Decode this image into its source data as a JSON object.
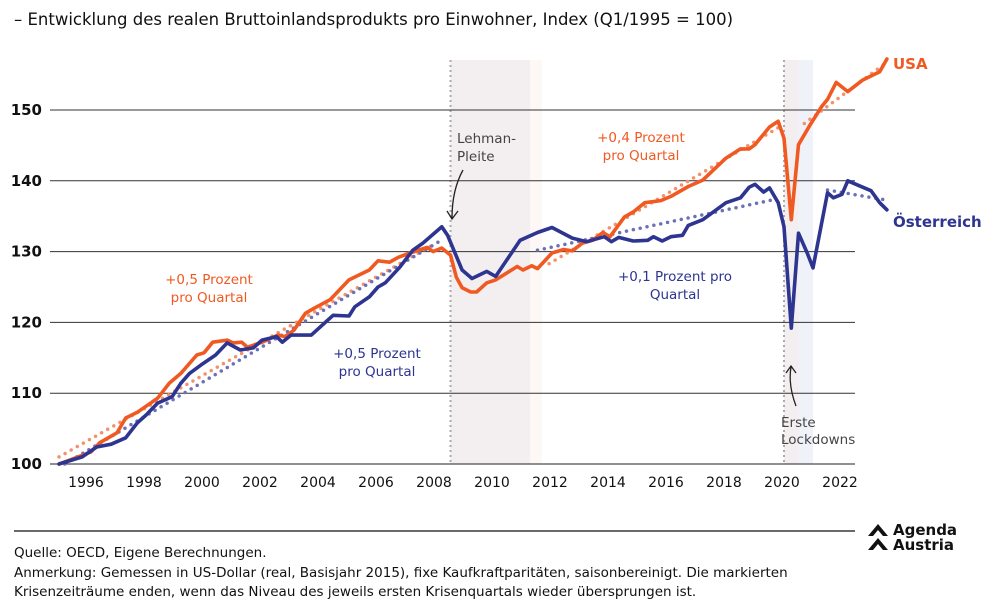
{
  "chart_data": {
    "type": "line",
    "title": "– Entwicklung des realen Bruttoinlandsprodukts pro Einwohner, Index (Q1/1995 = 100)",
    "xlabel": "",
    "ylabel": "",
    "xlim": [
      1995,
      2023.75
    ],
    "ylim": [
      100,
      157
    ],
    "yticks": [
      100,
      110,
      120,
      130,
      140,
      150
    ],
    "xticks": [
      1996,
      1998,
      2000,
      2002,
      2004,
      2006,
      2008,
      2010,
      2012,
      2014,
      2016,
      2018,
      2020,
      2022
    ],
    "grid": "horizontal",
    "colors": {
      "usa": "#f05a22",
      "austria": "#2e3590",
      "usa_trend": "#f4916a",
      "austria_trend": "#6c70b8",
      "crisis_shade": "#f3eff1",
      "crisis_recovery_lehman": "#fdf8f5",
      "crisis_recovery_covid": "#f0f2f9"
    },
    "series": [
      {
        "name": "USA",
        "key": "usa",
        "points": [
          [
            1995.0,
            100
          ],
          [
            1996.1,
            101.7
          ],
          [
            1996.4,
            103.0
          ],
          [
            1997.0,
            104.4
          ],
          [
            1997.3,
            106.5
          ],
          [
            1997.7,
            107.3
          ],
          [
            1998.4,
            109.3
          ],
          [
            1998.8,
            111.4
          ],
          [
            1999.2,
            112.8
          ],
          [
            1999.75,
            115.4
          ],
          [
            2000.0,
            115.7
          ],
          [
            2000.3,
            117.2
          ],
          [
            2000.8,
            117.5
          ],
          [
            2001.0,
            117.1
          ],
          [
            2001.3,
            117.2
          ],
          [
            2001.5,
            116.5
          ],
          [
            2002.0,
            117.2
          ],
          [
            2002.55,
            118.2
          ],
          [
            2002.8,
            118.0
          ],
          [
            2003.1,
            118.9
          ],
          [
            2003.5,
            121.3
          ],
          [
            2003.8,
            122.0
          ],
          [
            2004.35,
            123.2
          ],
          [
            2005.0,
            126.0
          ],
          [
            2005.45,
            126.9
          ],
          [
            2005.7,
            127.4
          ],
          [
            2006.0,
            128.7
          ],
          [
            2006.4,
            128.5
          ],
          [
            2006.7,
            129.2
          ],
          [
            2007.1,
            129.8
          ],
          [
            2007.7,
            130.6
          ],
          [
            2007.9,
            130.0
          ],
          [
            2008.2,
            130.5
          ],
          [
            2008.5,
            129.5
          ],
          [
            2008.7,
            126.4
          ],
          [
            2008.9,
            124.9
          ],
          [
            2009.2,
            124.3
          ],
          [
            2009.4,
            124.3
          ],
          [
            2009.75,
            125.6
          ],
          [
            2010.06,
            126.0
          ],
          [
            2010.8,
            127.9
          ],
          [
            2011.0,
            127.4
          ],
          [
            2011.3,
            128.0
          ],
          [
            2011.5,
            127.6
          ],
          [
            2012.0,
            129.8
          ],
          [
            2012.4,
            130.3
          ],
          [
            2012.7,
            130.1
          ],
          [
            2013.05,
            131.2
          ],
          [
            2013.4,
            131.6
          ],
          [
            2013.75,
            132.7
          ],
          [
            2014.0,
            132.1
          ],
          [
            2014.5,
            134.9
          ],
          [
            2014.8,
            135.6
          ],
          [
            2015.2,
            136.9
          ],
          [
            2015.75,
            137.2
          ],
          [
            2016.1,
            137.8
          ],
          [
            2016.7,
            139.2
          ],
          [
            2017.2,
            140.1
          ],
          [
            2018.0,
            143.2
          ],
          [
            2018.5,
            144.5
          ],
          [
            2018.8,
            144.5
          ],
          [
            2019.0,
            145.1
          ],
          [
            2019.5,
            147.6
          ],
          [
            2019.8,
            148.4
          ],
          [
            2020.0,
            146.0
          ],
          [
            2020.25,
            134.5
          ],
          [
            2020.5,
            145.1
          ],
          [
            2020.9,
            147.9
          ],
          [
            2021.3,
            150.5
          ],
          [
            2021.5,
            151.5
          ],
          [
            2021.8,
            153.9
          ],
          [
            2022.2,
            152.6
          ],
          [
            2022.7,
            154.2
          ],
          [
            2023.3,
            155.4
          ],
          [
            2023.55,
            157.2
          ]
        ]
      },
      {
        "name": "Österreich",
        "key": "austria",
        "points": [
          [
            1995.0,
            100
          ],
          [
            1995.8,
            101.0
          ],
          [
            1996.3,
            102.4
          ],
          [
            1996.8,
            102.8
          ],
          [
            1997.3,
            103.7
          ],
          [
            1997.7,
            105.8
          ],
          [
            1998.0,
            106.9
          ],
          [
            1998.4,
            108.6
          ],
          [
            1998.9,
            109.5
          ],
          [
            1999.2,
            111.4
          ],
          [
            1999.5,
            112.8
          ],
          [
            1999.9,
            114.0
          ],
          [
            2000.4,
            115.4
          ],
          [
            2000.8,
            117.1
          ],
          [
            2001.25,
            116.1
          ],
          [
            2001.7,
            116.4
          ],
          [
            2002.0,
            117.5
          ],
          [
            2002.5,
            118.0
          ],
          [
            2002.7,
            117.2
          ],
          [
            2003.0,
            118.2
          ],
          [
            2003.7,
            118.2
          ],
          [
            2004.45,
            121.0
          ],
          [
            2005.0,
            120.9
          ],
          [
            2005.2,
            122.2
          ],
          [
            2005.7,
            123.6
          ],
          [
            2006.0,
            125.0
          ],
          [
            2006.25,
            125.6
          ],
          [
            2006.75,
            127.8
          ],
          [
            2007.2,
            130.2
          ],
          [
            2007.55,
            131.2
          ],
          [
            2008.2,
            133.5
          ],
          [
            2008.4,
            132.3
          ],
          [
            2008.9,
            127.4
          ],
          [
            2009.24,
            126.2
          ],
          [
            2009.75,
            127.2
          ],
          [
            2010.06,
            126.5
          ],
          [
            2010.9,
            131.6
          ],
          [
            2011.5,
            132.7
          ],
          [
            2012.0,
            133.4
          ],
          [
            2012.7,
            131.9
          ],
          [
            2013.2,
            131.4
          ],
          [
            2013.8,
            132.1
          ],
          [
            2014.05,
            131.4
          ],
          [
            2014.3,
            132.0
          ],
          [
            2014.8,
            131.5
          ],
          [
            2015.3,
            131.6
          ],
          [
            2015.5,
            132.1
          ],
          [
            2015.8,
            131.5
          ],
          [
            2016.1,
            132.1
          ],
          [
            2016.5,
            132.3
          ],
          [
            2016.7,
            133.7
          ],
          [
            2017.2,
            134.5
          ],
          [
            2018.0,
            136.9
          ],
          [
            2018.5,
            137.6
          ],
          [
            2018.8,
            139.1
          ],
          [
            2019.0,
            139.5
          ],
          [
            2019.3,
            138.4
          ],
          [
            2019.5,
            139.0
          ],
          [
            2019.8,
            136.9
          ],
          [
            2020.0,
            133.5
          ],
          [
            2020.25,
            119.2
          ],
          [
            2020.5,
            132.6
          ],
          [
            2020.8,
            129.8
          ],
          [
            2021.0,
            127.7
          ],
          [
            2021.5,
            138.3
          ],
          [
            2021.7,
            137.6
          ],
          [
            2022.0,
            138.1
          ],
          [
            2022.2,
            140.0
          ],
          [
            2022.6,
            139.3
          ],
          [
            2023.0,
            138.6
          ],
          [
            2023.3,
            136.9
          ],
          [
            2023.55,
            135.9
          ]
        ]
      }
    ],
    "trends": [
      {
        "key": "usa",
        "label": "+0,5 Prozent pro Quartal",
        "points": [
          [
            1995.0,
            101
          ],
          [
            2008.0,
            131.2
          ]
        ]
      },
      {
        "key": "austria",
        "label": "+0,5 Prozent pro Quartal",
        "points": [
          [
            1995.2,
            100
          ],
          [
            2008.1,
            131.4
          ]
        ]
      },
      {
        "key": "usa",
        "label": "+0,4 Prozent pro Quartal",
        "points": [
          [
            2011.9,
            128.3
          ],
          [
            2019.8,
            147.5
          ]
        ]
      },
      {
        "key": "austria",
        "label": "+0,1 Prozent pro Quartal",
        "points": [
          [
            2011.5,
            130.2
          ],
          [
            2019.6,
            137.3
          ]
        ]
      },
      {
        "key": "usa",
        "label": "",
        "points": [
          [
            2020.7,
            148.1
          ],
          [
            2023.5,
            156.6
          ]
        ]
      },
      {
        "key": "austria",
        "label": "",
        "points": [
          [
            2021.5,
            138.7
          ],
          [
            2023.5,
            137.3
          ]
        ]
      }
    ],
    "crises": [
      {
        "start": 2008.5,
        "shade_end": 2011.25,
        "end": 2011.65,
        "label_line1": "Lehman-",
        "label_line2": "Pleite"
      },
      {
        "start": 2020.0,
        "shade_end": 2020.5,
        "end": 2021.0,
        "label_line1": "Erste",
        "label_line2": "Lockdowns"
      }
    ],
    "labels": {
      "usa": "USA",
      "austria": "Österreich",
      "usa_trend1_l1": "+0,5 Prozent",
      "usa_trend1_l2": "pro Quartal",
      "aut_trend1_l1": "+0,5 Prozent",
      "aut_trend1_l2": "pro Quartal",
      "usa_trend2_l1": "+0,4 Prozent",
      "usa_trend2_l2": "pro Quartal",
      "aut_trend2_l1": "+0,1 Prozent pro",
      "aut_trend2_l2": "Quartal"
    }
  },
  "footer": {
    "source": "Quelle: OECD, Eigene Berechnungen.",
    "note_line1": "Anmerkung: Gemessen in US-Dollar (real, Basisjahr 2015), fixe Kaufkraftparitäten, saisonbereinigt. Die markierten",
    "note_line2": "Krisenzeiträume enden, wenn das Niveau des jeweils ersten Krisenquartals wieder übersprungen ist."
  },
  "logo": {
    "line1": "Agenda",
    "line2": "Austria"
  }
}
